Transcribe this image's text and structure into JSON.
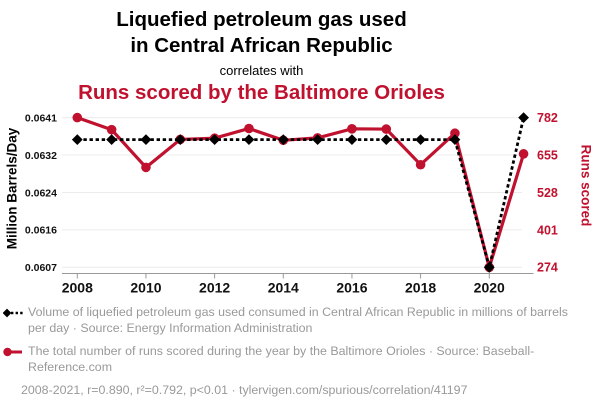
{
  "header": {
    "title_line1": "Liquefied petroleum gas used",
    "title_line2": "in Central African Republic",
    "connector": "correlates with",
    "subtitle": "Runs scored by the Baltimore Orioles"
  },
  "colors": {
    "red": "#c0122f",
    "black": "#000000",
    "grid": "#ececec",
    "axis": "#999999",
    "gray_text": "#999999"
  },
  "chart_data": {
    "type": "line",
    "x": [
      2008,
      2009,
      2010,
      2011,
      2012,
      2013,
      2014,
      2015,
      2016,
      2017,
      2018,
      2019,
      2020,
      2021
    ],
    "series": [
      {
        "name": "Liquefied petroleum gas used in Central African Republic",
        "axis": "left",
        "marker": "diamond",
        "line_style": "dotted",
        "color_key": "black",
        "values": [
          0.0636,
          0.0636,
          0.0636,
          0.0636,
          0.0636,
          0.0636,
          0.0636,
          0.0636,
          0.0636,
          0.0636,
          0.0636,
          0.0636,
          0.0607,
          0.0641
        ]
      },
      {
        "name": "Runs scored by the Baltimore Orioles",
        "axis": "right",
        "marker": "circle",
        "line_style": "solid",
        "color_key": "red",
        "values": [
          782,
          741,
          613,
          708,
          712,
          745,
          705,
          713,
          744,
          743,
          622,
          729,
          274,
          659
        ]
      }
    ],
    "left_axis": {
      "label": "Million Barrels/Day",
      "tick_labels": [
        "0.0641",
        "0.0632",
        "0.0624",
        "0.0616",
        "0.0607"
      ],
      "min": 0.0607,
      "max": 0.0641
    },
    "right_axis": {
      "label": "Runs scored",
      "tick_labels": [
        "782",
        "655",
        "528",
        "401",
        "274"
      ],
      "min": 274,
      "max": 782
    },
    "x_axis": {
      "tick_labels": [
        "2008",
        "2010",
        "2012",
        "2014",
        "2016",
        "2018",
        "2020"
      ],
      "tick_years": [
        2008,
        2010,
        2012,
        2014,
        2016,
        2018,
        2020
      ]
    },
    "grid": "horizontal-only",
    "legend_position": "bottom"
  },
  "legend": {
    "items": [
      {
        "text": "Volume of liquefied petroleum gas used consumed in Central African Republic in millions of barrels per day · Source: Energy Information Administration"
      },
      {
        "text": "The total number of runs scored during the year by the Baltimore Orioles · Source: Baseball-Reference.com"
      }
    ]
  },
  "footer": {
    "text": "2008-2021, r=0.890, r²=0.792, p<0.01 · tylervigen.com/spurious/correlation/41197"
  }
}
